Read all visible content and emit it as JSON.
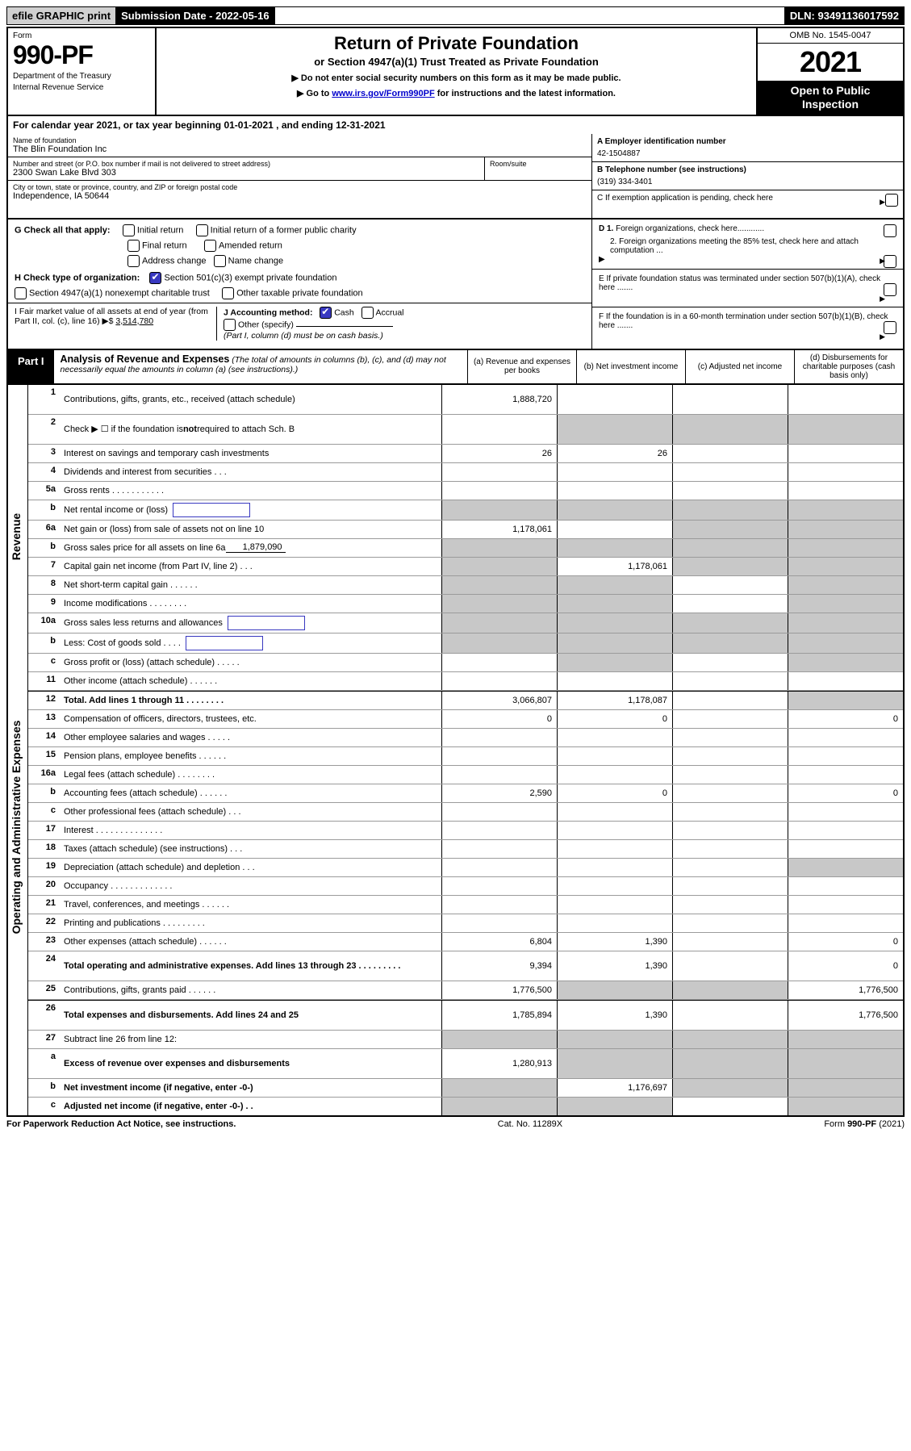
{
  "top": {
    "efile": "efile GRAPHIC print",
    "submission_label": "Submission Date - 2022-05-16",
    "dln": "DLN: 93491136017592"
  },
  "header": {
    "form_word": "Form",
    "form_num": "990-PF",
    "dept": "Department of the Treasury",
    "irs": "Internal Revenue Service",
    "title": "Return of Private Foundation",
    "subtitle": "or Section 4947(a)(1) Trust Treated as Private Foundation",
    "note1": "▶ Do not enter social security numbers on this form as it may be made public.",
    "note2_pre": "▶ Go to ",
    "note2_link": "www.irs.gov/Form990PF",
    "note2_post": " for instructions and the latest information.",
    "omb": "OMB No. 1545-0047",
    "year": "2021",
    "open": "Open to Public Inspection"
  },
  "cal_year": "For calendar year 2021, or tax year beginning 01-01-2021                              , and ending 12-31-2021",
  "info": {
    "name_label": "Name of foundation",
    "name": "The Blin Foundation Inc",
    "addr_label": "Number and street (or P.O. box number if mail is not delivered to street address)",
    "addr": "2300 Swan Lake Blvd 303",
    "room_label": "Room/suite",
    "city_label": "City or town, state or province, country, and ZIP or foreign postal code",
    "city": "Independence, IA  50644",
    "a_label": "A Employer identification number",
    "a_val": "42-1504887",
    "b_label": "B Telephone number (see instructions)",
    "b_val": "(319) 334-3401",
    "c_label": "C If exemption application is pending, check here",
    "d1": "D 1. Foreign organizations, check here............",
    "d2": "2. Foreign organizations meeting the 85% test, check here and attach computation ...",
    "e": "E   If private foundation status was terminated under section 507(b)(1)(A), check here .......",
    "f": "F   If the foundation is in a 60-month termination under section 507(b)(1)(B), check here .......",
    "g_label": "G Check all that apply:",
    "g_opts": [
      "Initial return",
      "Initial return of a former public charity",
      "Final return",
      "Amended return",
      "Address change",
      "Name change"
    ],
    "h_label": "H Check type of organization:",
    "h1": "Section 501(c)(3) exempt private foundation",
    "h2": "Section 4947(a)(1) nonexempt charitable trust",
    "h3": "Other taxable private foundation",
    "i_label": "I Fair market value of all assets at end of year (from Part II, col. (c), line 16)",
    "i_val": "3,514,780",
    "j_label": "J Accounting method:",
    "j_cash": "Cash",
    "j_accrual": "Accrual",
    "j_other": "Other (specify)",
    "j_note": "(Part I, column (d) must be on cash basis.)"
  },
  "part1": {
    "tab": "Part I",
    "title": "Analysis of Revenue and Expenses",
    "title_note": " (The total of amounts in columns (b), (c), and (d) may not necessarily equal the amounts in column (a) (see instructions).)",
    "col_a": "(a)   Revenue and expenses per books",
    "col_b": "(b)   Net investment income",
    "col_c": "(c)  Adjusted net income",
    "col_d": "(d)   Disbursements for charitable purposes (cash basis only)",
    "side_rev": "Revenue",
    "side_exp": "Operating and Administrative Expenses"
  },
  "rows": [
    {
      "ln": "1",
      "desc": "Contributions, gifts, grants, etc., received (attach schedule)",
      "a": "1,888,720",
      "tall": true
    },
    {
      "ln": "2",
      "desc": "Check ▶ ☐ if the foundation is not required to attach Sch. B",
      "noA": true,
      "greyB": true,
      "greyC": true,
      "greyD": true,
      "tall": true,
      "boldnot": true
    },
    {
      "ln": "3",
      "desc": "Interest on savings and temporary cash investments",
      "a": "26",
      "b": "26"
    },
    {
      "ln": "4",
      "desc": "Dividends and interest from securities   .   .   ."
    },
    {
      "ln": "5a",
      "desc": "Gross rents   .   .   .   .   .   .   .   .   .   .   ."
    },
    {
      "ln": "b",
      "desc": "Net rental income or (loss)",
      "inlineBox": true,
      "greyA": true,
      "greyB": true,
      "greyC": true,
      "greyD": true
    },
    {
      "ln": "6a",
      "desc": "Net gain or (loss) from sale of assets not on line 10",
      "a": "1,178,061",
      "greyC": true,
      "greyD": true
    },
    {
      "ln": "b",
      "desc": "Gross sales price for all assets on line 6a",
      "underlineVal": "1,879,090",
      "greyA": true,
      "greyB": true,
      "greyC": true,
      "greyD": true
    },
    {
      "ln": "7",
      "desc": "Capital gain net income (from Part IV, line 2)   .   .   .",
      "greyA": true,
      "b": "1,178,061",
      "greyC": true,
      "greyD": true
    },
    {
      "ln": "8",
      "desc": "Net short-term capital gain   .   .   .   .   .   .",
      "greyA": true,
      "greyB": true,
      "greyD": true
    },
    {
      "ln": "9",
      "desc": "Income modifications  .   .   .   .   .   .   .   .",
      "greyA": true,
      "greyB": true,
      "greyD": true
    },
    {
      "ln": "10a",
      "desc": "Gross sales less returns and allowances",
      "inlineBox": true,
      "greyA": true,
      "greyB": true,
      "greyC": true,
      "greyD": true
    },
    {
      "ln": "b",
      "desc": "Less: Cost of goods sold    .   .   .   .",
      "inlineBox": true,
      "greyA": true,
      "greyB": true,
      "greyC": true,
      "greyD": true
    },
    {
      "ln": "c",
      "desc": "Gross profit or (loss) (attach schedule)    .   .   .   .   .",
      "greyB": true,
      "greyD": true
    },
    {
      "ln": "11",
      "desc": "Other income (attach schedule)    .   .   .   .   .   ."
    },
    {
      "ln": "12",
      "desc": "Total. Add lines 1 through 11   .   .   .   .   .   .   .   .",
      "bold": true,
      "a": "3,066,807",
      "b": "1,178,087",
      "greyD": true,
      "divider": true
    },
    {
      "ln": "13",
      "desc": "Compensation of officers, directors, trustees, etc.",
      "a": "0",
      "b": "0",
      "d": "0"
    },
    {
      "ln": "14",
      "desc": "Other employee salaries and wages   .   .   .   .   ."
    },
    {
      "ln": "15",
      "desc": "Pension plans, employee benefits  .   .   .   .   .   ."
    },
    {
      "ln": "16a",
      "desc": "Legal fees (attach schedule)  .   .   .   .   .   .   .   ."
    },
    {
      "ln": "b",
      "desc": "Accounting fees (attach schedule)  .   .   .   .   .   .",
      "a": "2,590",
      "b": "0",
      "d": "0"
    },
    {
      "ln": "c",
      "desc": "Other professional fees (attach schedule)    .   .   ."
    },
    {
      "ln": "17",
      "desc": "Interest  .   .   .   .   .   .   .   .   .   .   .   .   .   ."
    },
    {
      "ln": "18",
      "desc": "Taxes (attach schedule) (see instructions)     .   .   ."
    },
    {
      "ln": "19",
      "desc": "Depreciation (attach schedule) and depletion    .   .   .",
      "greyD": true
    },
    {
      "ln": "20",
      "desc": "Occupancy  .   .   .   .   .   .   .   .   .   .   .   .   ."
    },
    {
      "ln": "21",
      "desc": "Travel, conferences, and meetings  .   .   .   .   .   ."
    },
    {
      "ln": "22",
      "desc": "Printing and publications  .   .   .   .   .   .   .   .   ."
    },
    {
      "ln": "23",
      "desc": "Other expenses (attach schedule)  .   .   .   .   .   .",
      "a": "6,804",
      "b": "1,390",
      "d": "0"
    },
    {
      "ln": "24",
      "desc": "Total operating and administrative expenses. Add lines 13 through 23   .   .   .   .   .   .   .   .   .",
      "bold": true,
      "a": "9,394",
      "b": "1,390",
      "d": "0",
      "tall": true
    },
    {
      "ln": "25",
      "desc": "Contributions, gifts, grants paid    .   .   .   .   .   .",
      "a": "1,776,500",
      "greyB": true,
      "greyC": true,
      "d": "1,776,500"
    },
    {
      "ln": "26",
      "desc": "Total expenses and disbursements. Add lines 24 and 25",
      "bold": true,
      "a": "1,785,894",
      "b": "1,390",
      "d": "1,776,500",
      "tall": true,
      "divider": true
    },
    {
      "ln": "27",
      "desc": "Subtract line 26 from line 12:",
      "greyA": true,
      "greyB": true,
      "greyC": true,
      "greyD": true
    },
    {
      "ln": "a",
      "desc": "Excess of revenue over expenses and disbursements",
      "bold": true,
      "a": "1,280,913",
      "greyB": true,
      "greyC": true,
      "greyD": true,
      "tall": true
    },
    {
      "ln": "b",
      "desc": "Net investment income (if negative, enter -0-)",
      "bold": true,
      "greyA": true,
      "b": "1,176,697",
      "greyC": true,
      "greyD": true
    },
    {
      "ln": "c",
      "desc": "Adjusted net income (if negative, enter -0-)   .   .",
      "bold": true,
      "greyA": true,
      "greyB": true,
      "greyD": true
    }
  ],
  "footer": {
    "left": "For Paperwork Reduction Act Notice, see instructions.",
    "mid": "Cat. No. 11289X",
    "right": "Form 990-PF (2021)"
  }
}
